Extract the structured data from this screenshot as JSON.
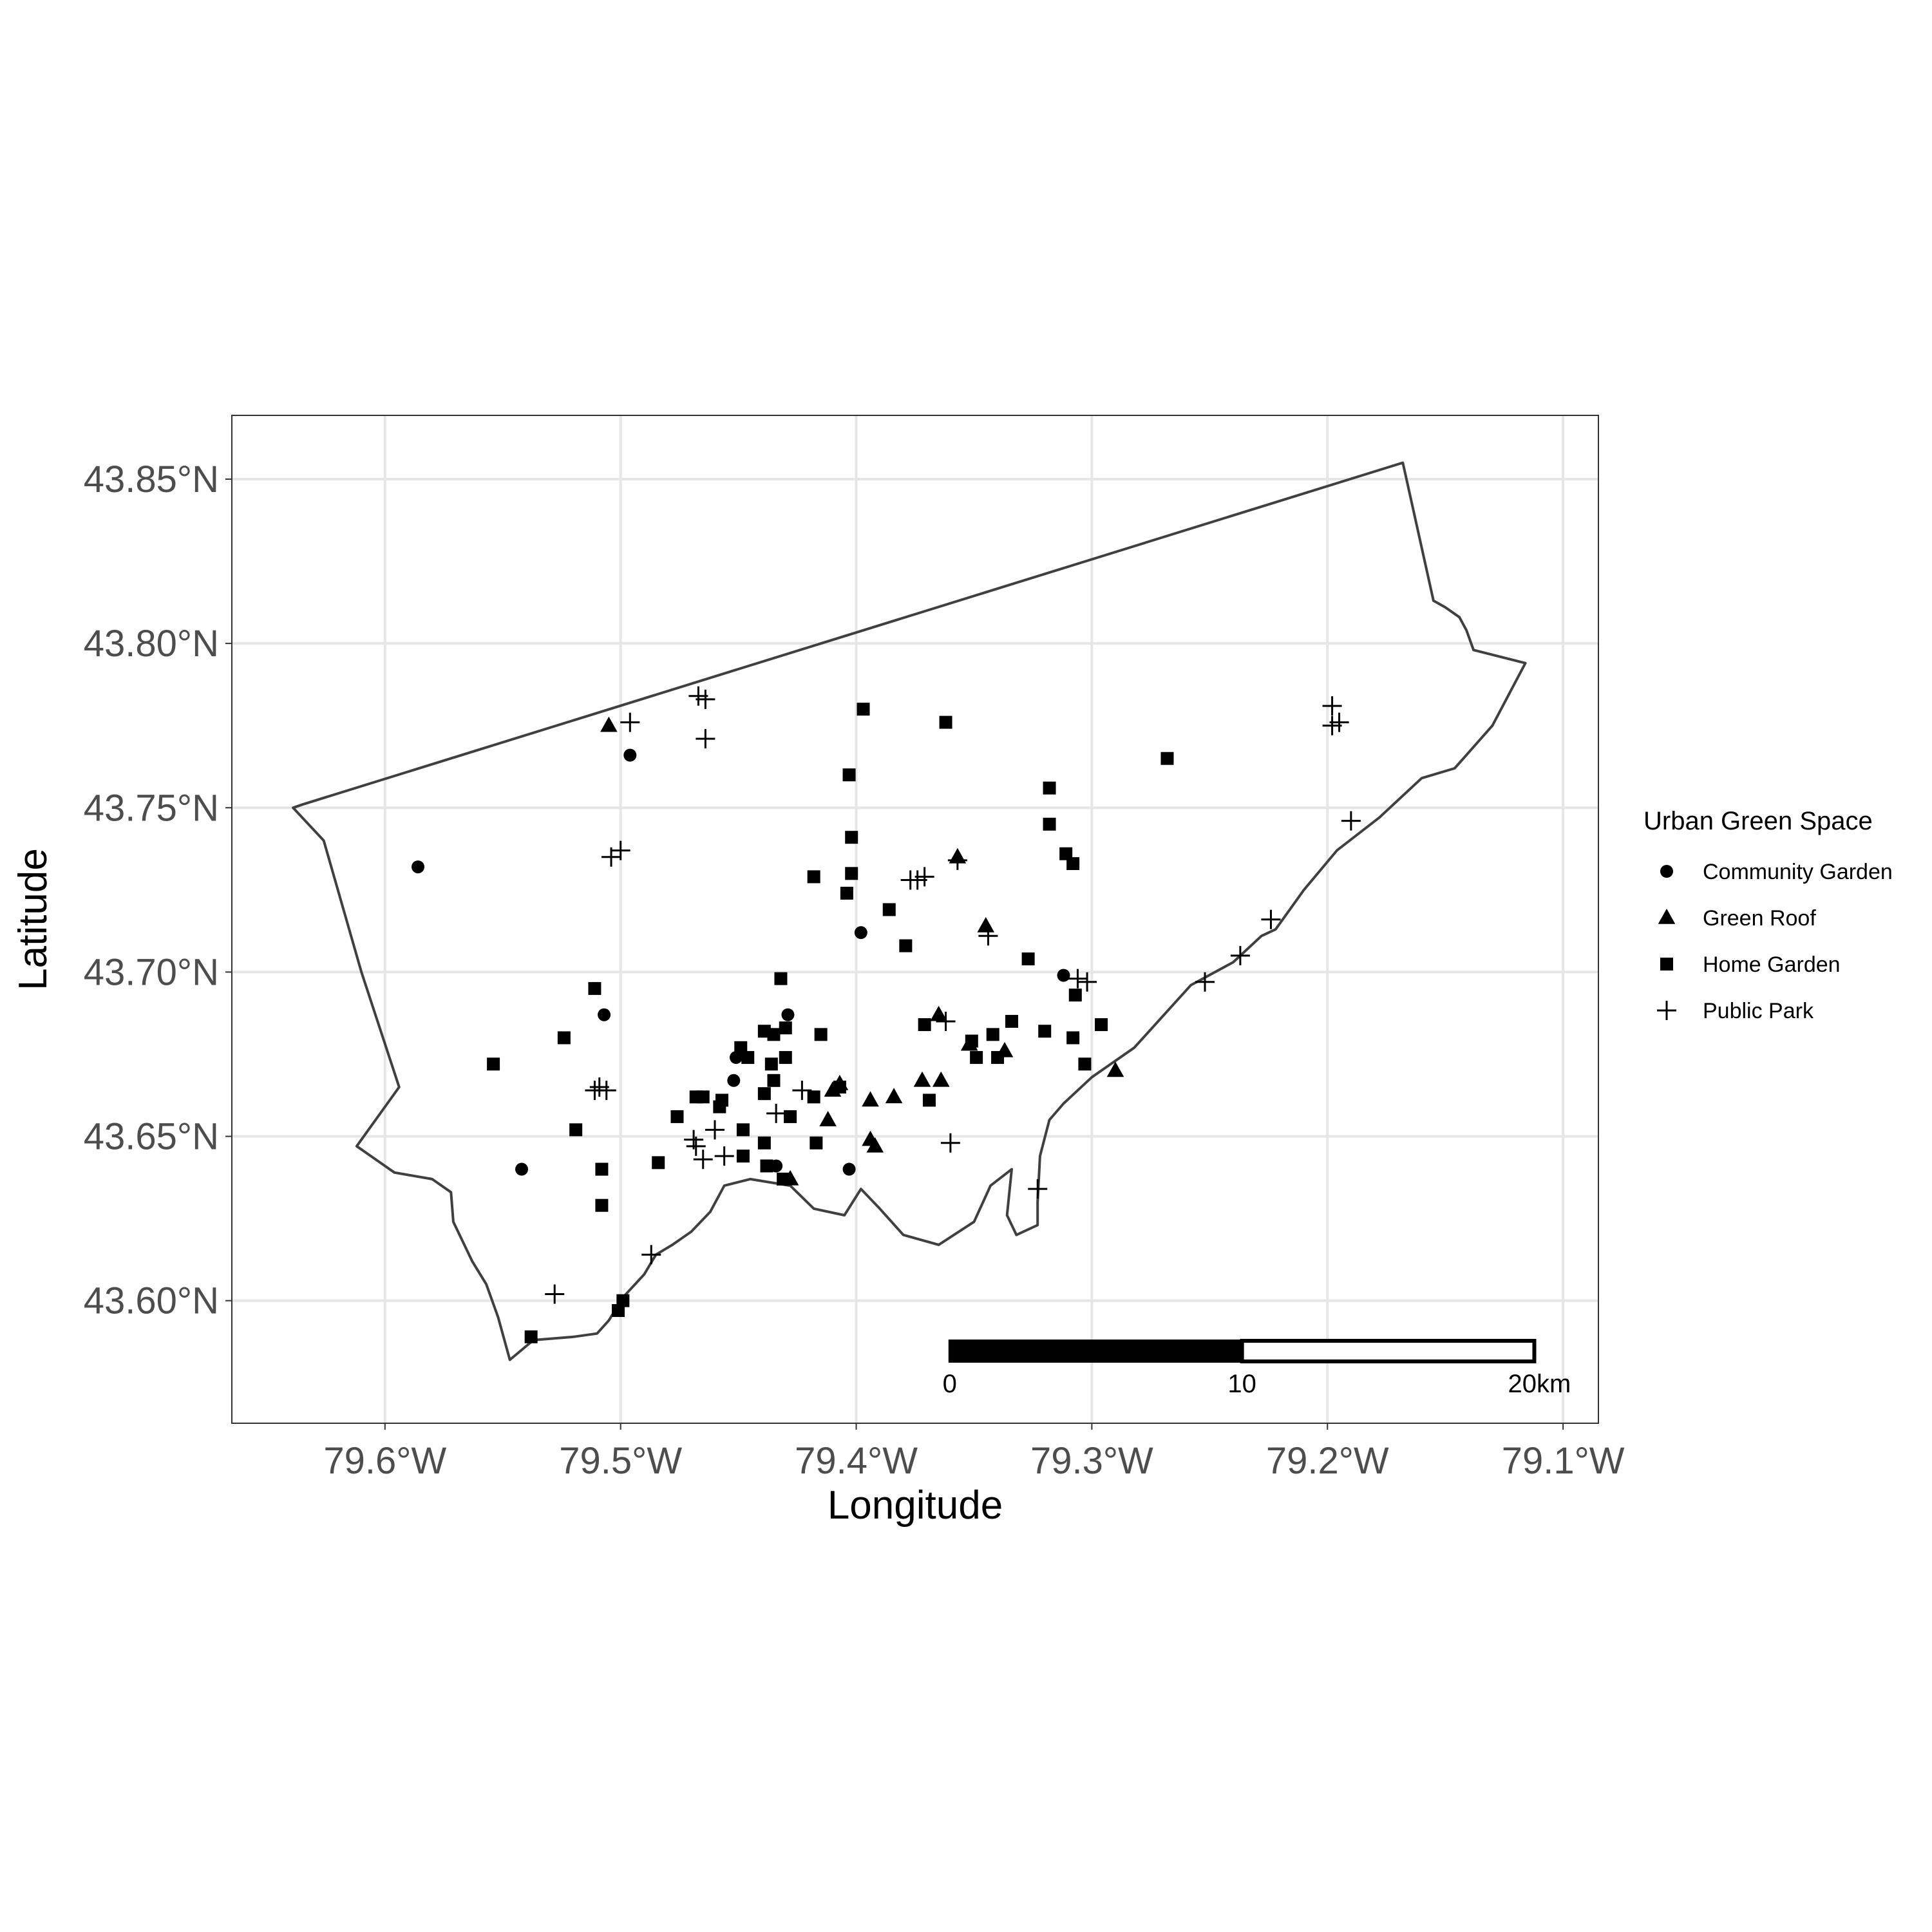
{
  "chart_data": {
    "type": "scatter",
    "title": "",
    "xlabel": "Longitude",
    "ylabel": "Latitude",
    "xlim": [
      -79.665,
      -79.085
    ],
    "ylim": [
      43.5627,
      43.8694
    ],
    "x_ticks": [
      {
        "value": -79.6,
        "label": "79.6°W"
      },
      {
        "value": -79.5,
        "label": "79.5°W"
      },
      {
        "value": -79.4,
        "label": "79.4°W"
      },
      {
        "value": -79.3,
        "label": "79.3°W"
      },
      {
        "value": -79.2,
        "label": "79.2°W"
      },
      {
        "value": -79.1,
        "label": "79.1°W"
      }
    ],
    "y_ticks": [
      {
        "value": 43.6,
        "label": "43.60°N"
      },
      {
        "value": 43.65,
        "label": "43.65°N"
      },
      {
        "value": 43.7,
        "label": "43.70°N"
      },
      {
        "value": 43.75,
        "label": "43.75°N"
      },
      {
        "value": 43.8,
        "label": "43.80°N"
      },
      {
        "value": 43.85,
        "label": "43.85°N"
      }
    ],
    "grid": true,
    "legend_placement": "right",
    "legend": {
      "title": "Urban Green Space",
      "items": [
        {
          "label": "Community Garden",
          "shape": "circle"
        },
        {
          "label": "Green Roof",
          "shape": "triangle"
        },
        {
          "label": "Home Garden",
          "shape": "square"
        },
        {
          "label": "Public Park",
          "shape": "plus"
        }
      ]
    },
    "scale_bar": {
      "labels": [
        "0",
        "10",
        "20km"
      ]
    },
    "colors": {
      "points": "#000000",
      "boundary": "#404040",
      "grid": "#e6e6e6",
      "panel_border": "#333333"
    },
    "boundary": [
      [
        -79.639,
        43.75
      ],
      [
        -79.635,
        43.751
      ],
      [
        -79.168,
        43.855
      ],
      [
        -79.155,
        43.813
      ],
      [
        -79.15,
        43.811
      ],
      [
        -79.144,
        43.808
      ],
      [
        -79.141,
        43.804
      ],
      [
        -79.138,
        43.798
      ],
      [
        -79.116,
        43.794
      ],
      [
        -79.13,
        43.775
      ],
      [
        -79.146,
        43.762
      ],
      [
        -79.16,
        43.759
      ],
      [
        -79.178,
        43.747
      ],
      [
        -79.196,
        43.737
      ],
      [
        -79.21,
        43.725
      ],
      [
        -79.222,
        43.713
      ],
      [
        -79.228,
        43.711
      ],
      [
        -79.24,
        43.703
      ],
      [
        -79.258,
        43.696
      ],
      [
        -79.282,
        43.677
      ],
      [
        -79.3,
        43.668
      ],
      [
        -79.312,
        43.66
      ],
      [
        -79.318,
        43.655
      ],
      [
        -79.322,
        43.644
      ],
      [
        -79.323,
        43.63
      ],
      [
        -79.323,
        43.623
      ],
      [
        -79.332,
        43.62
      ],
      [
        -79.336,
        43.626
      ],
      [
        -79.334,
        43.64
      ],
      [
        -79.343,
        43.635
      ],
      [
        -79.35,
        43.624
      ],
      [
        -79.365,
        43.617
      ],
      [
        -79.38,
        43.62
      ],
      [
        -79.39,
        43.628
      ],
      [
        -79.398,
        43.634
      ],
      [
        -79.405,
        43.626
      ],
      [
        -79.418,
        43.628
      ],
      [
        -79.428,
        43.635
      ],
      [
        -79.445,
        43.637
      ],
      [
        -79.456,
        43.635
      ],
      [
        -79.462,
        43.627
      ],
      [
        -79.47,
        43.621
      ],
      [
        -79.478,
        43.617
      ],
      [
        -79.485,
        43.614
      ],
      [
        -79.49,
        43.608
      ],
      [
        -79.499,
        43.601
      ],
      [
        -79.505,
        43.594
      ],
      [
        -79.51,
        43.59
      ],
      [
        -79.52,
        43.589
      ],
      [
        -79.537,
        43.588
      ],
      [
        -79.547,
        43.582
      ],
      [
        -79.552,
        43.595
      ],
      [
        -79.557,
        43.605
      ],
      [
        -79.563,
        43.612
      ],
      [
        -79.571,
        43.624
      ],
      [
        -79.572,
        43.633
      ],
      [
        -79.58,
        43.637
      ],
      [
        -79.596,
        43.639
      ],
      [
        -79.608,
        43.645
      ],
      [
        -79.612,
        43.647
      ],
      [
        -79.594,
        43.665
      ],
      [
        -79.61,
        43.7
      ],
      [
        -79.626,
        43.74
      ],
      [
        -79.639,
        43.75
      ]
    ],
    "series": [
      {
        "name": "Community Garden",
        "shape": "circle",
        "points": [
          [
            -79.586,
            43.732
          ],
          [
            -79.496,
            43.766
          ],
          [
            -79.542,
            43.64
          ],
          [
            -79.507,
            43.687
          ],
          [
            -79.452,
            43.667
          ],
          [
            -79.451,
            43.674
          ],
          [
            -79.429,
            43.687
          ],
          [
            -79.434,
            43.641
          ],
          [
            -79.403,
            43.64
          ],
          [
            -79.398,
            43.712
          ],
          [
            -79.312,
            43.699
          ]
        ]
      },
      {
        "name": "Green Roof",
        "shape": "triangle",
        "points": [
          [
            -79.505,
            43.775
          ],
          [
            -79.428,
            43.637
          ],
          [
            -79.412,
            43.655
          ],
          [
            -79.41,
            43.664
          ],
          [
            -79.407,
            43.666
          ],
          [
            -79.394,
            43.661
          ],
          [
            -79.394,
            43.649
          ],
          [
            -79.392,
            43.647
          ],
          [
            -79.384,
            43.662
          ],
          [
            -79.372,
            43.667
          ],
          [
            -79.364,
            43.667
          ],
          [
            -79.365,
            43.687
          ],
          [
            -79.357,
            43.735
          ],
          [
            -79.345,
            43.714
          ],
          [
            -79.352,
            43.678
          ],
          [
            -79.337,
            43.676
          ],
          [
            -79.29,
            43.67
          ]
        ]
      },
      {
        "name": "Home Garden",
        "shape": "square",
        "points": [
          [
            -79.554,
            43.672
          ],
          [
            -79.538,
            43.589
          ],
          [
            -79.524,
            43.68
          ],
          [
            -79.519,
            43.652
          ],
          [
            -79.511,
            43.695
          ],
          [
            -79.508,
            43.64
          ],
          [
            -79.508,
            43.629
          ],
          [
            -79.501,
            43.597
          ],
          [
            -79.499,
            43.6
          ],
          [
            -79.484,
            43.642
          ],
          [
            -79.476,
            43.656
          ],
          [
            -79.468,
            43.662
          ],
          [
            -79.465,
            43.662
          ],
          [
            -79.458,
            43.659
          ],
          [
            -79.457,
            43.661
          ],
          [
            -79.449,
            43.677
          ],
          [
            -79.448,
            43.644
          ],
          [
            -79.448,
            43.652
          ],
          [
            -79.446,
            43.674
          ],
          [
            -79.439,
            43.682
          ],
          [
            -79.439,
            43.663
          ],
          [
            -79.439,
            43.648
          ],
          [
            -79.438,
            43.641
          ],
          [
            -79.436,
            43.672
          ],
          [
            -79.435,
            43.681
          ],
          [
            -79.435,
            43.667
          ],
          [
            -79.432,
            43.698
          ],
          [
            -79.431,
            43.637
          ],
          [
            -79.43,
            43.683
          ],
          [
            -79.43,
            43.674
          ],
          [
            -79.428,
            43.656
          ],
          [
            -79.418,
            43.729
          ],
          [
            -79.418,
            43.662
          ],
          [
            -79.417,
            43.648
          ],
          [
            -79.415,
            43.681
          ],
          [
            -79.407,
            43.665
          ],
          [
            -79.404,
            43.724
          ],
          [
            -79.403,
            43.76
          ],
          [
            -79.402,
            43.741
          ],
          [
            -79.402,
            43.73
          ],
          [
            -79.397,
            43.78
          ],
          [
            -79.386,
            43.719
          ],
          [
            -79.379,
            43.708
          ],
          [
            -79.371,
            43.684
          ],
          [
            -79.369,
            43.661
          ],
          [
            -79.362,
            43.776
          ],
          [
            -79.351,
            43.679
          ],
          [
            -79.349,
            43.674
          ],
          [
            -79.342,
            43.681
          ],
          [
            -79.34,
            43.674
          ],
          [
            -79.334,
            43.685
          ],
          [
            -79.327,
            43.704
          ],
          [
            -79.32,
            43.682
          ],
          [
            -79.318,
            43.756
          ],
          [
            -79.318,
            43.745
          ],
          [
            -79.311,
            43.736
          ],
          [
            -79.308,
            43.733
          ],
          [
            -79.308,
            43.68
          ],
          [
            -79.307,
            43.693
          ],
          [
            -79.303,
            43.672
          ],
          [
            -79.296,
            43.684
          ],
          [
            -79.268,
            43.765
          ]
        ]
      },
      {
        "name": "Public Park",
        "shape": "plus",
        "points": [
          [
            -79.528,
            43.602
          ],
          [
            -79.511,
            43.664
          ],
          [
            -79.509,
            43.665
          ],
          [
            -79.506,
            43.664
          ],
          [
            -79.504,
            43.735
          ],
          [
            -79.5,
            43.737
          ],
          [
            -79.496,
            43.776
          ],
          [
            -79.487,
            43.614
          ],
          [
            -79.467,
            43.784
          ],
          [
            -79.464,
            43.783
          ],
          [
            -79.464,
            43.771
          ],
          [
            -79.469,
            43.649
          ],
          [
            -79.468,
            43.647
          ],
          [
            -79.465,
            43.643
          ],
          [
            -79.46,
            43.652
          ],
          [
            -79.456,
            43.644
          ],
          [
            -79.434,
            43.657
          ],
          [
            -79.423,
            43.664
          ],
          [
            -79.377,
            43.728
          ],
          [
            -79.374,
            43.728
          ],
          [
            -79.371,
            43.729
          ],
          [
            -79.362,
            43.685
          ],
          [
            -79.36,
            43.648
          ],
          [
            -79.357,
            43.734
          ],
          [
            -79.344,
            43.711
          ],
          [
            -79.323,
            43.634
          ],
          [
            -79.306,
            43.698
          ],
          [
            -79.302,
            43.697
          ],
          [
            -79.252,
            43.697
          ],
          [
            -79.237,
            43.705
          ],
          [
            -79.224,
            43.716
          ],
          [
            -79.198,
            43.781
          ],
          [
            -79.198,
            43.775
          ],
          [
            -79.195,
            43.776
          ],
          [
            -79.19,
            43.746
          ]
        ]
      }
    ]
  }
}
